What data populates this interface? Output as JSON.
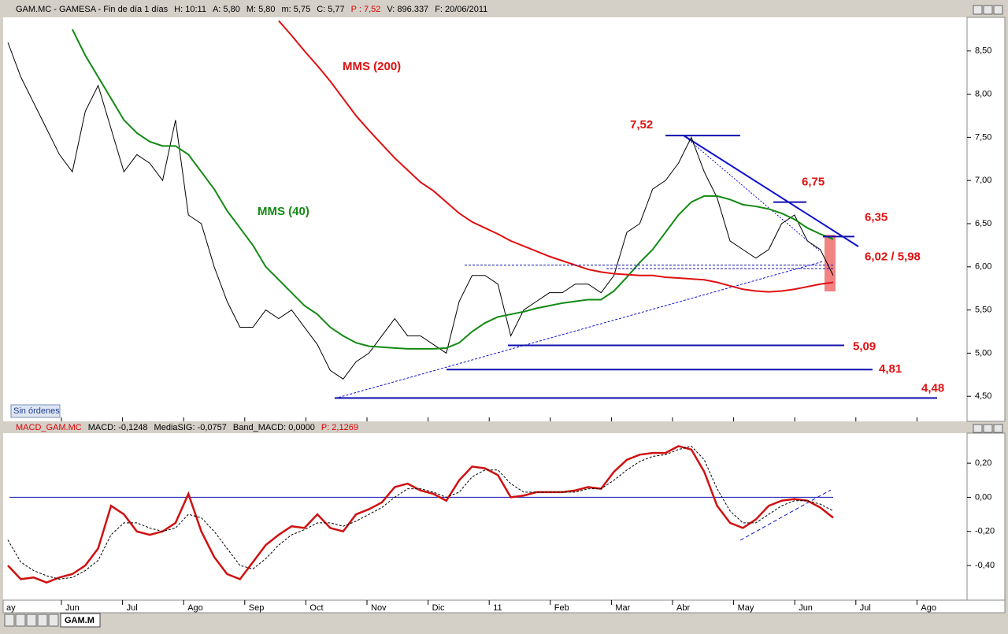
{
  "header": {
    "items": [
      {
        "text": "GAM.MC - GAMESA - Fin de día 1 días",
        "color": "#000000"
      },
      {
        "text": "H: 10:11",
        "color": "#000000"
      },
      {
        "text": "A: 5,80",
        "color": "#000000"
      },
      {
        "text": "M: 5,80",
        "color": "#000000"
      },
      {
        "text": "m: 5,75",
        "color": "#000000"
      },
      {
        "text": "C: 5,77",
        "color": "#000000"
      },
      {
        "text": "P : 7,52",
        "color": "#e00000"
      },
      {
        "text": "V: 896.337",
        "color": "#000000"
      },
      {
        "text": "F: 20/06/2011",
        "color": "#000000"
      }
    ]
  },
  "price_chart": {
    "type": "line",
    "series": [
      {
        "name": "GAM.MC",
        "color": "#000000",
        "values": [
          8.6,
          8.2,
          7.9,
          7.6,
          7.3,
          7.1,
          7.8,
          8.1,
          7.6,
          7.1,
          7.3,
          7.2,
          7.0,
          7.7,
          6.6,
          6.5,
          6.0,
          5.6,
          5.3,
          5.3,
          5.5,
          5.4,
          5.5,
          5.3,
          5.1,
          4.8,
          4.7,
          4.9,
          5.0,
          5.2,
          5.4,
          5.2,
          5.2,
          5.1,
          5.0,
          5.6,
          5.9,
          5.9,
          5.8,
          5.2,
          5.5,
          5.6,
          5.7,
          5.7,
          5.8,
          5.8,
          5.7,
          5.9,
          6.4,
          6.5,
          6.9,
          7.0,
          7.2,
          7.5,
          7.1,
          6.8,
          6.3,
          6.2,
          6.1,
          6.2,
          6.5,
          6.6,
          6.3,
          6.2,
          5.9
        ]
      },
      {
        "name": "MMS (40)",
        "color": "#138a13",
        "values": [
          null,
          null,
          null,
          null,
          null,
          8.75,
          8.45,
          8.2,
          7.95,
          7.7,
          7.55,
          7.45,
          7.4,
          7.4,
          7.3,
          7.1,
          6.9,
          6.65,
          6.45,
          6.25,
          6.0,
          5.85,
          5.7,
          5.55,
          5.45,
          5.3,
          5.2,
          5.12,
          5.08,
          5.07,
          5.06,
          5.05,
          5.05,
          5.05,
          5.06,
          5.12,
          5.25,
          5.35,
          5.42,
          5.45,
          5.48,
          5.52,
          5.55,
          5.58,
          5.6,
          5.62,
          5.62,
          5.72,
          5.88,
          6.05,
          6.2,
          6.4,
          6.6,
          6.75,
          6.82,
          6.82,
          6.78,
          6.72,
          6.7,
          6.67,
          6.62,
          6.55,
          6.45,
          6.38,
          6.32
        ]
      },
      {
        "name": "MMS (200)",
        "color": "#e01010",
        "values": [
          null,
          null,
          null,
          null,
          null,
          null,
          null,
          null,
          null,
          null,
          null,
          null,
          null,
          null,
          null,
          null,
          null,
          null,
          null,
          null,
          null,
          8.85,
          8.68,
          8.5,
          8.33,
          8.15,
          7.95,
          7.75,
          7.58,
          7.42,
          7.26,
          7.12,
          6.98,
          6.88,
          6.75,
          6.62,
          6.52,
          6.45,
          6.38,
          6.3,
          6.24,
          6.18,
          6.12,
          6.07,
          6.02,
          5.97,
          5.94,
          5.92,
          5.91,
          5.9,
          5.9,
          5.88,
          5.87,
          5.86,
          5.85,
          5.82,
          5.78,
          5.74,
          5.72,
          5.71,
          5.72,
          5.74,
          5.77,
          5.8,
          5.82
        ]
      }
    ],
    "ylim": [
      4.21,
      8.89
    ],
    "yticks": [
      {
        "value": 4.5,
        "label": "4,50"
      },
      {
        "value": 5.0,
        "label": "5,00"
      },
      {
        "value": 5.5,
        "label": "5,50"
      },
      {
        "value": 6.0,
        "label": "6,00"
      },
      {
        "value": 6.5,
        "label": "6,50"
      },
      {
        "value": 7.0,
        "label": "7,00"
      },
      {
        "value": 7.5,
        "label": "7,50"
      },
      {
        "value": 8.0,
        "label": "8,00"
      },
      {
        "value": 8.5,
        "label": "8,50"
      }
    ],
    "levels": [
      {
        "label": "7,52",
        "values": [
          7.52
        ]
      },
      {
        "label": "6,75",
        "values": [
          6.75
        ]
      },
      {
        "label": "6,35",
        "values": [
          6.35
        ]
      },
      {
        "label": "6,02 / 5,98",
        "values": [
          6.02,
          5.98
        ]
      },
      {
        "label": "5,09",
        "values": [
          5.09
        ]
      },
      {
        "label": "4,81",
        "values": [
          4.81
        ]
      },
      {
        "label": "4,48",
        "values": [
          4.48
        ]
      }
    ]
  },
  "macd_chart": {
    "type": "line",
    "header": [
      {
        "text": "MACD_GAM.MC",
        "color": "#e00000"
      },
      {
        "text": "MACD: -0,1248",
        "color": "#000000"
      },
      {
        "text": "MediaSIG: -0,0757",
        "color": "#000000"
      },
      {
        "text": "Band_MACD: 0,0000",
        "color": "#000000"
      },
      {
        "text": "P: 2,1269",
        "color": "#e00000"
      }
    ],
    "series": [
      {
        "color": "#d01010",
        "values": [
          -0.4,
          -0.48,
          -0.47,
          -0.5,
          -0.47,
          -0.45,
          -0.4,
          -0.3,
          -0.05,
          -0.1,
          -0.2,
          -0.22,
          -0.2,
          -0.15,
          0.02,
          -0.2,
          -0.35,
          -0.45,
          -0.48,
          -0.38,
          -0.28,
          -0.22,
          -0.17,
          -0.18,
          -0.1,
          -0.18,
          -0.2,
          -0.1,
          -0.07,
          -0.03,
          0.06,
          0.08,
          0.04,
          0.02,
          -0.02,
          0.1,
          0.18,
          0.17,
          0.13,
          0.0,
          0.01,
          0.03,
          0.03,
          0.03,
          0.04,
          0.06,
          0.05,
          0.15,
          0.22,
          0.25,
          0.26,
          0.26,
          0.3,
          0.28,
          0.15,
          -0.05,
          -0.15,
          -0.18,
          -0.13,
          -0.05,
          -0.02,
          -0.01,
          -0.02,
          -0.06,
          -0.12
        ]
      },
      {
        "color": "#000000",
        "values": [
          -0.25,
          -0.38,
          -0.43,
          -0.46,
          -0.48,
          -0.47,
          -0.43,
          -0.37,
          -0.22,
          -0.15,
          -0.15,
          -0.18,
          -0.2,
          -0.18,
          -0.1,
          -0.12,
          -0.2,
          -0.3,
          -0.4,
          -0.42,
          -0.36,
          -0.28,
          -0.22,
          -0.19,
          -0.15,
          -0.15,
          -0.17,
          -0.14,
          -0.1,
          -0.06,
          0.0,
          0.05,
          0.05,
          0.03,
          0.0,
          0.03,
          0.12,
          0.16,
          0.16,
          0.08,
          0.03,
          0.03,
          0.03,
          0.03,
          0.03,
          0.05,
          0.05,
          0.1,
          0.16,
          0.21,
          0.24,
          0.25,
          0.28,
          0.3,
          0.22,
          0.05,
          -0.08,
          -0.15,
          -0.15,
          -0.1,
          -0.05,
          -0.02,
          -0.02,
          -0.04,
          -0.08
        ]
      }
    ],
    "ylim": [
      -0.603,
      0.376
    ],
    "yticks": [
      {
        "value": -0.4,
        "label": "-0,40"
      },
      {
        "value": -0.2,
        "label": "-0,20"
      },
      {
        "value": 0.0,
        "label": "0,00"
      },
      {
        "value": 0.2,
        "label": "0,20"
      }
    ]
  },
  "months": [
    "ay",
    "Jun",
    "Jul",
    "Ago",
    "Sep",
    "Oct",
    "Nov",
    "Dic",
    "11",
    "Feb",
    "Mar",
    "Abr",
    "May",
    "Jun",
    "Jul",
    "Ago"
  ],
  "button": "Sin órdenes",
  "tab": "GAM.M"
}
